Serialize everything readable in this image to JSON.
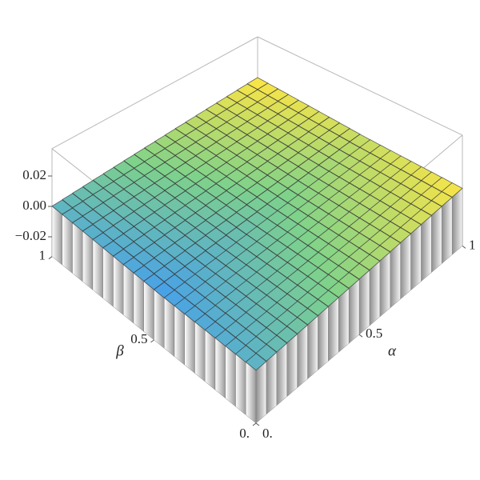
{
  "chart_data": {
    "type": "bar3d",
    "x_label": "α",
    "y_label": "β",
    "xlim": [
      0,
      1
    ],
    "ylim": [
      0,
      1
    ],
    "zlim": [
      -0.033,
      0.038
    ],
    "xticks": [
      {
        "value": 0,
        "label": "0."
      },
      0.5,
      1
    ],
    "yticks": [
      {
        "value": 0,
        "label": "0."
      },
      0.5,
      1
    ],
    "zticks": [
      {
        "value": -0.02,
        "label": "−0.02"
      },
      {
        "value": 0,
        "label": "0.00"
      },
      0.02
    ],
    "colormap": [
      "#4aa2e6",
      "#7fd28a",
      "#f7e448"
    ],
    "side_color": "#d4d4d4",
    "box_color": "#b8b8b8",
    "values": [
      [
        0.0001,
        0.0003,
        0.0005,
        0.0007,
        0.0009,
        0.0011,
        0.0013,
        0.0015,
        0.0017,
        0.0019,
        0.0021,
        0.0023,
        0.0025,
        0.0027,
        0.0029,
        0.0031,
        0.0033,
        0.0035,
        0.0037,
        0.0039
      ],
      [
        0,
        0.0002,
        0.0004,
        0.0006,
        0.0008,
        0.001,
        0.0012,
        0.0014,
        0.0016,
        0.0018,
        0.002,
        0.0022,
        0.0024,
        0.0026,
        0.0028,
        0.003,
        0.0032,
        0.0034,
        0.0036,
        0.0038
      ],
      [
        -0.0001,
        0.0001,
        0.0003,
        0.0005,
        0.0007,
        0.0009,
        0.0011,
        0.0013,
        0.0015,
        0.0017,
        0.0019,
        0.0021,
        0.0023,
        0.0025,
        0.0027,
        0.0029,
        0.0031,
        0.0033,
        0.0035,
        0.0037
      ],
      [
        -0.0002,
        0,
        0.0002,
        0.0004,
        0.0006,
        0.0008,
        0.001,
        0.0012,
        0.0014,
        0.0016,
        0.0018,
        0.002,
        0.0022,
        0.0024,
        0.0026,
        0.0028,
        0.003,
        0.0032,
        0.0034,
        0.0036
      ],
      [
        -0.0003,
        -0.0001,
        0.0001,
        0.0003,
        0.0005,
        0.0007,
        0.0009,
        0.0011,
        0.0013,
        0.0015,
        0.0017,
        0.0019,
        0.0021,
        0.0023,
        0.0025,
        0.0027,
        0.0029,
        0.0031,
        0.0033,
        0.0035
      ],
      [
        -0.0004,
        -0.0002,
        0,
        0.0002,
        0.0004,
        0.0006,
        0.0008,
        0.001,
        0.0012,
        0.0014,
        0.0016,
        0.0018,
        0.002,
        0.0022,
        0.0024,
        0.0026,
        0.0028,
        0.003,
        0.0032,
        0.0034
      ],
      [
        -0.0005,
        -0.0003,
        -0.0001,
        0.0001,
        0.0003,
        0.0005,
        0.0007,
        0.0009,
        0.0011,
        0.0013,
        0.0015,
        0.0017,
        0.0019,
        0.0021,
        0.0023,
        0.0025,
        0.0027,
        0.0029,
        0.0031,
        0.0033
      ],
      [
        -0.0006,
        -0.0004,
        -0.0002,
        0,
        0.0002,
        0.0004,
        0.0006,
        0.0008,
        0.001,
        0.0012,
        0.0014,
        0.0016,
        0.0018,
        0.002,
        0.0022,
        0.0024,
        0.0026,
        0.0028,
        0.003,
        0.0032
      ],
      [
        -0.0007,
        -0.0005,
        -0.0003,
        -0.0001,
        0.0001,
        0.0003,
        0.0005,
        0.0007,
        0.0009,
        0.0011,
        0.0013,
        0.0015,
        0.0017,
        0.0019,
        0.0021,
        0.0023,
        0.0025,
        0.0027,
        0.0029,
        0.0031
      ],
      [
        -0.0008,
        -0.0006,
        -0.0004,
        -0.0002,
        0,
        0.0002,
        0.0004,
        0.0006,
        0.0008,
        0.001,
        0.0012,
        0.0014,
        0.0016,
        0.0018,
        0.002,
        0.0022,
        0.0024,
        0.0026,
        0.0028,
        0.003
      ],
      [
        -0.0007,
        -0.0005,
        -0.0003,
        -0.0001,
        0.0001,
        0.0003,
        0.0005,
        0.0007,
        0.0009,
        0.0011,
        0.0013,
        0.0015,
        0.0017,
        0.0019,
        0.0021,
        0.0023,
        0.0025,
        0.0027,
        0.0029,
        0.0031
      ],
      [
        -0.0006,
        -0.0004,
        -0.0002,
        0,
        0.0002,
        0.0004,
        0.0006,
        0.0008,
        0.001,
        0.0012,
        0.0014,
        0.0016,
        0.0018,
        0.002,
        0.0022,
        0.0024,
        0.0026,
        0.0028,
        0.003,
        0.0032
      ],
      [
        -0.0005,
        -0.0003,
        -0.0001,
        0.0001,
        0.0003,
        0.0005,
        0.0007,
        0.0009,
        0.0011,
        0.0013,
        0.0015,
        0.0017,
        0.0019,
        0.0021,
        0.0023,
        0.0025,
        0.0027,
        0.0029,
        0.0031,
        0.0033
      ],
      [
        -0.0004,
        -0.0002,
        0,
        0.0002,
        0.0004,
        0.0006,
        0.0008,
        0.001,
        0.0012,
        0.0014,
        0.0016,
        0.0018,
        0.002,
        0.0022,
        0.0024,
        0.0026,
        0.0028,
        0.003,
        0.0032,
        0.0034
      ],
      [
        -0.0003,
        -0.0001,
        0.0001,
        0.0003,
        0.0005,
        0.0007,
        0.0009,
        0.0011,
        0.0013,
        0.0015,
        0.0017,
        0.0019,
        0.0021,
        0.0023,
        0.0025,
        0.0027,
        0.0029,
        0.0031,
        0.0033,
        0.0035
      ],
      [
        -0.0002,
        0,
        0.0002,
        0.0004,
        0.0006,
        0.0008,
        0.001,
        0.0012,
        0.0014,
        0.0016,
        0.0018,
        0.002,
        0.0022,
        0.0024,
        0.0026,
        0.0028,
        0.003,
        0.0032,
        0.0034,
        0.0036
      ],
      [
        -0.0001,
        0.0001,
        0.0003,
        0.0005,
        0.0007,
        0.0009,
        0.0011,
        0.0013,
        0.0015,
        0.0017,
        0.0019,
        0.0021,
        0.0023,
        0.0025,
        0.0027,
        0.0029,
        0.0031,
        0.0033,
        0.0035,
        0.0037
      ],
      [
        0,
        0.0002,
        0.0004,
        0.0006,
        0.0008,
        0.001,
        0.0012,
        0.0014,
        0.0016,
        0.0018,
        0.002,
        0.0022,
        0.0024,
        0.0026,
        0.0028,
        0.003,
        0.0032,
        0.0034,
        0.0036,
        0.0038
      ],
      [
        0.0001,
        0.0003,
        0.0005,
        0.0007,
        0.0009,
        0.0011,
        0.0013,
        0.0015,
        0.0017,
        0.0019,
        0.0021,
        0.0023,
        0.0025,
        0.0027,
        0.0029,
        0.0031,
        0.0033,
        0.0035,
        0.0037,
        0.0039
      ],
      [
        0.0002,
        0.0004,
        0.0006,
        0.0008,
        0.001,
        0.0012,
        0.0014,
        0.0016,
        0.0018,
        0.002,
        0.0022,
        0.0024,
        0.0026,
        0.0028,
        0.003,
        0.0032,
        0.0034,
        0.0036,
        0.0038,
        0.004
      ]
    ]
  }
}
